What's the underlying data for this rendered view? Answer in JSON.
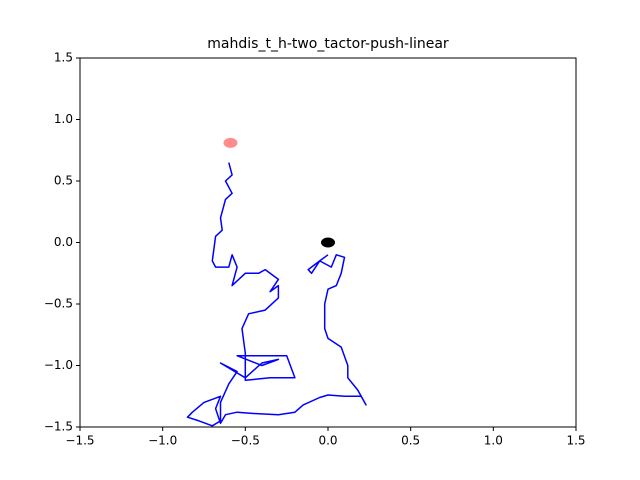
{
  "chart_data": {
    "type": "line",
    "title": "mahdis_t_h-two_tactor-push-linear",
    "color": "#0000ff",
    "x": [
      0.0,
      -0.05,
      -0.1,
      -0.12,
      -0.05,
      0.02,
      0.05,
      0.1,
      0.08,
      0.05,
      0.0,
      -0.02,
      -0.02,
      0.0,
      0.08,
      0.12,
      0.12,
      0.18,
      0.23,
      0.2,
      0.1,
      0.0,
      -0.05,
      -0.15,
      -0.2,
      -0.3,
      -0.45,
      -0.55,
      -0.62,
      -0.65,
      -0.68,
      -0.65,
      -0.75,
      -0.82,
      -0.85,
      -0.78,
      -0.7,
      -0.65,
      -0.65,
      -0.6,
      -0.55,
      -0.65,
      -0.5,
      -0.4,
      -0.3,
      -0.4,
      -0.55,
      -0.25,
      -0.2,
      -0.35,
      -0.5,
      -0.5,
      -0.52,
      -0.48,
      -0.38,
      -0.3,
      -0.3,
      -0.35,
      -0.3,
      -0.38,
      -0.42,
      -0.5,
      -0.58,
      -0.55,
      -0.58,
      -0.6,
      -0.68,
      -0.7,
      -0.68,
      -0.64,
      -0.65,
      -0.62,
      -0.58,
      -0.62,
      -0.58,
      -0.6
    ],
    "values": [
      -0.1,
      -0.15,
      -0.25,
      -0.22,
      -0.15,
      -0.2,
      -0.1,
      -0.12,
      -0.25,
      -0.35,
      -0.38,
      -0.5,
      -0.7,
      -0.78,
      -0.85,
      -1.0,
      -1.1,
      -1.2,
      -1.32,
      -1.25,
      -1.25,
      -1.24,
      -1.26,
      -1.32,
      -1.38,
      -1.4,
      -1.39,
      -1.38,
      -1.4,
      -1.47,
      -1.35,
      -1.25,
      -1.3,
      -1.38,
      -1.42,
      -1.45,
      -1.49,
      -1.45,
      -1.3,
      -1.15,
      -1.05,
      -0.98,
      -1.1,
      -0.98,
      -0.95,
      -1.0,
      -0.92,
      -0.92,
      -1.1,
      -1.1,
      -1.12,
      -0.9,
      -0.7,
      -0.58,
      -0.55,
      -0.45,
      -0.35,
      -0.4,
      -0.3,
      -0.22,
      -0.25,
      -0.25,
      -0.35,
      -0.2,
      -0.1,
      -0.2,
      -0.2,
      -0.15,
      0.05,
      0.1,
      0.2,
      0.35,
      0.4,
      0.5,
      0.55,
      0.65
    ],
    "points": [
      {
        "x": 0.0,
        "y": 0.0,
        "color": "#000000"
      },
      {
        "x": -0.59,
        "y": 0.81,
        "color": "#ff7777"
      }
    ],
    "xlim": [
      -1.5,
      1.5
    ],
    "ylim": [
      -1.5,
      1.5
    ],
    "xticks": [
      {
        "value": -1.5,
        "label": "−1.5"
      },
      {
        "value": -1.0,
        "label": "−1.0"
      },
      {
        "value": -0.5,
        "label": "−0.5"
      },
      {
        "value": 0,
        "label": "0.0"
      },
      0.5,
      {
        "value": 1,
        "label": "1.0"
      },
      1.5
    ],
    "yticks": [
      {
        "value": -1.5,
        "label": "−1.5"
      },
      {
        "value": -1.0,
        "label": "−1.0"
      },
      {
        "value": -0.5,
        "label": "−0.5"
      },
      {
        "value": 0,
        "label": "0.0"
      },
      0.5,
      {
        "value": 1,
        "label": "1.0"
      },
      1.5
    ]
  }
}
